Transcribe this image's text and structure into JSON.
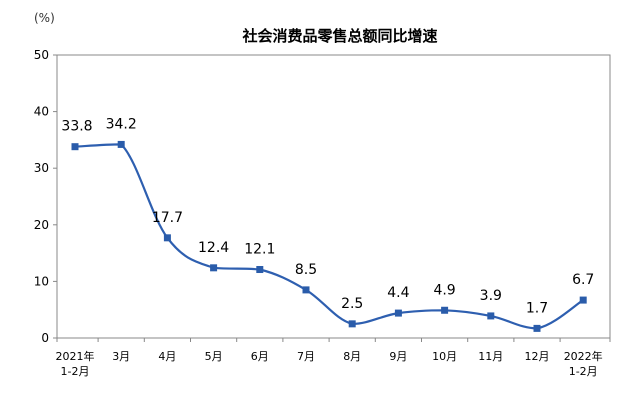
{
  "chart_data": {
    "type": "line",
    "title": "社会消费品零售总额同比增速",
    "unit": "(%)",
    "categories": [
      [
        "2021年",
        "1-2月"
      ],
      [
        "3月"
      ],
      [
        "4月"
      ],
      [
        "5月"
      ],
      [
        "6月"
      ],
      [
        "7月"
      ],
      [
        "8月"
      ],
      [
        "9月"
      ],
      [
        "10月"
      ],
      [
        "11月"
      ],
      [
        "12月"
      ],
      [
        "2022年",
        "1-2月"
      ]
    ],
    "values": [
      33.8,
      34.2,
      17.7,
      12.4,
      12.1,
      8.5,
      2.5,
      4.4,
      4.9,
      3.9,
      1.7,
      6.7
    ],
    "data_labels": [
      "33.8",
      "34.2",
      "17.7",
      "12.4",
      "12.1",
      "8.5",
      "2.5",
      "4.4",
      "4.9",
      "3.9",
      "1.7",
      "6.7"
    ],
    "y_ticks": [
      "0",
      "10",
      "20",
      "30",
      "40",
      "50"
    ],
    "ylim": [
      0,
      50
    ],
    "smooth": true,
    "grid": false,
    "colors": {
      "line": "#2E5FB0",
      "marker": "#2A5CAA",
      "axis": "#888888"
    }
  }
}
